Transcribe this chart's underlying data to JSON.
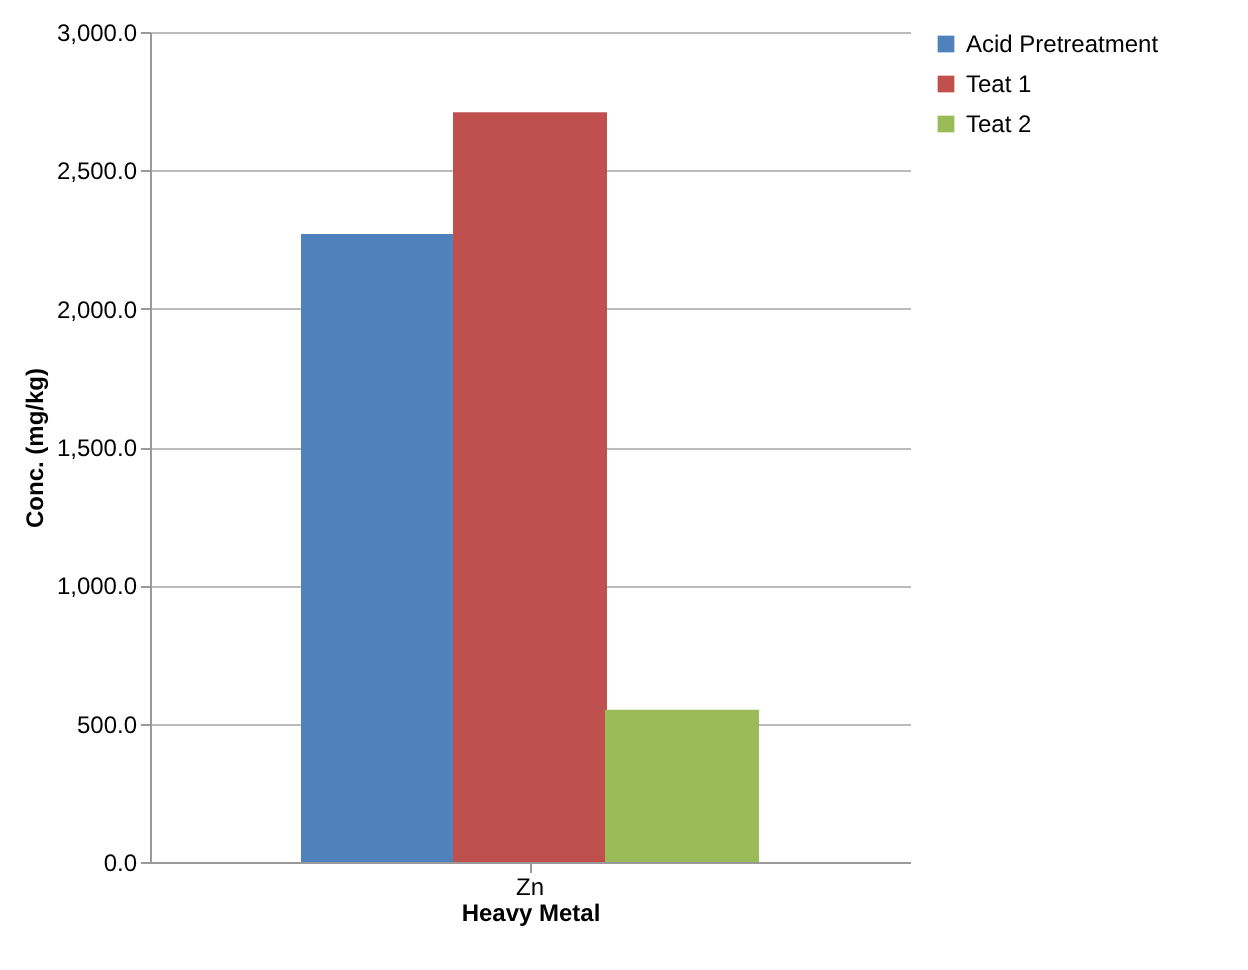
{
  "chart_data": {
    "type": "bar",
    "xlabel": "Heavy Metal",
    "ylabel": "Conc. (mg/kg)",
    "categories": [
      "Zn"
    ],
    "series": [
      {
        "name": "Acid Pretreatment",
        "color": "#4f81bd",
        "values": [
          2270
        ]
      },
      {
        "name": "Teat 1",
        "color": "#c0504d",
        "values": [
          2710
        ]
      },
      {
        "name": "Teat 2",
        "color": "#9bbb59",
        "values": [
          550
        ]
      }
    ],
    "ylim": [
      0,
      3000
    ],
    "yticks": [
      {
        "value": 0,
        "label": "0.0"
      },
      {
        "value": 500,
        "label": "500.0"
      },
      {
        "value": 1000,
        "label": "1,000.0"
      },
      {
        "value": 1500,
        "label": "1,500.0"
      },
      {
        "value": 2000,
        "label": "2,000.0"
      },
      {
        "value": 2500,
        "label": "2,500.0"
      },
      {
        "value": 3000,
        "label": "3,000.0"
      }
    ],
    "grid": "y",
    "legend": "right"
  }
}
